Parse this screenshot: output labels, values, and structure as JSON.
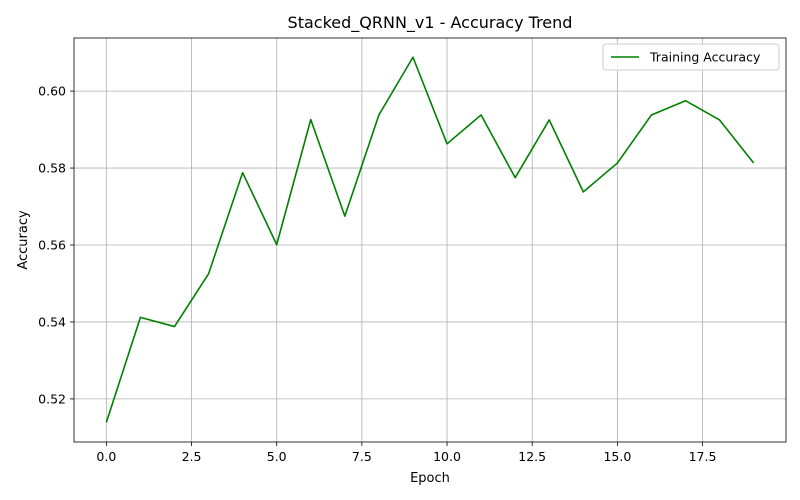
{
  "chart_data": {
    "type": "line",
    "title": "Stacked_QRNN_v1 - Accuracy Trend",
    "xlabel": "Epoch",
    "ylabel": "Accuracy",
    "xlim": [
      -0.95,
      19.95
    ],
    "ylim": [
      0.5088,
      0.6138
    ],
    "xticks": [
      0.0,
      2.5,
      5.0,
      7.5,
      10.0,
      12.5,
      15.0,
      17.5
    ],
    "xtick_labels": [
      "0.0",
      "2.5",
      "5.0",
      "7.5",
      "10.0",
      "12.5",
      "15.0",
      "17.5"
    ],
    "yticks": [
      0.52,
      0.54,
      0.56,
      0.58,
      0.6
    ],
    "ytick_labels": [
      "0.52",
      "0.54",
      "0.56",
      "0.58",
      "0.60"
    ],
    "grid": true,
    "legend_position": "top-right",
    "series": [
      {
        "name": "Training Accuracy",
        "color": "#008000",
        "x": [
          0,
          1,
          2,
          3,
          4,
          5,
          6,
          7,
          8,
          9,
          10,
          11,
          12,
          13,
          14,
          15,
          16,
          17,
          18,
          19
        ],
        "values": [
          0.5139,
          0.5412,
          0.5388,
          0.5525,
          0.5788,
          0.5601,
          0.5926,
          0.5675,
          0.5938,
          0.6088,
          0.5863,
          0.5938,
          0.5775,
          0.5925,
          0.5738,
          0.5813,
          0.5938,
          0.5975,
          0.5925,
          0.5813
        ]
      }
    ]
  }
}
